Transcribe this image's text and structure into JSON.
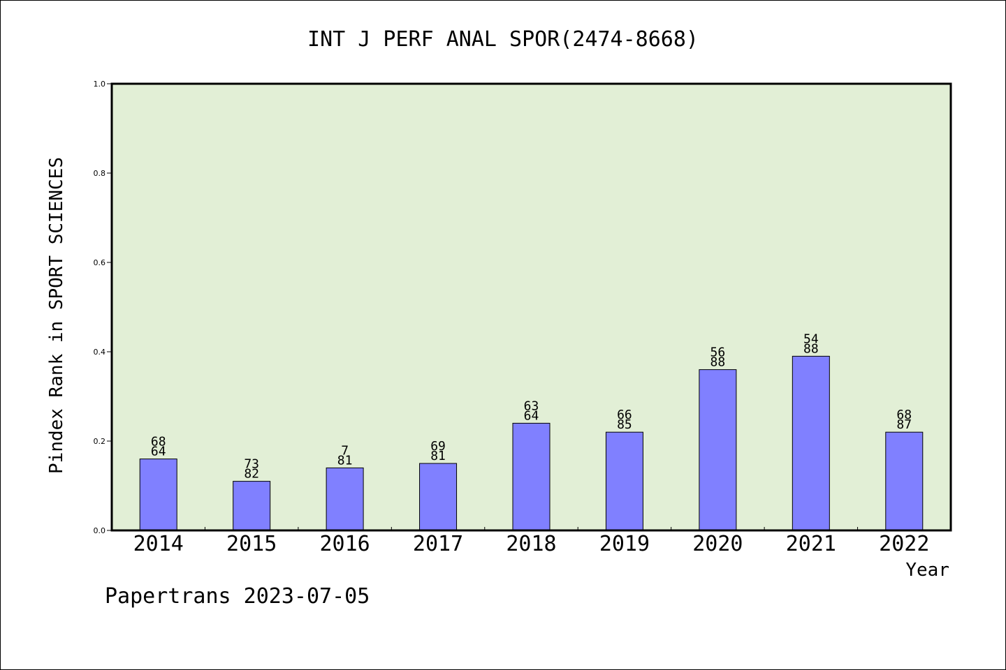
{
  "chart_data": {
    "type": "bar",
    "title": "INT J PERF ANAL SPOR(2474-8668)",
    "ylabel": "Pindex Rank in SPORT SCIENCES",
    "xlabel": "Year",
    "categories": [
      "2014",
      "2015",
      "2016",
      "2017",
      "2018",
      "2019",
      "2020",
      "2021",
      "2022"
    ],
    "values": [
      0.16,
      0.11,
      0.14,
      0.15,
      0.24,
      0.22,
      0.36,
      0.39,
      0.22
    ],
    "bar_labels": [
      [
        "68",
        "64"
      ],
      [
        "73",
        "82"
      ],
      [
        "7",
        "81"
      ],
      [
        "69",
        "81"
      ],
      [
        "63",
        "64"
      ],
      [
        "66",
        "85"
      ],
      [
        "56",
        "88"
      ],
      [
        "54",
        "88"
      ],
      [
        "68",
        "87"
      ]
    ],
    "ylim": [
      0,
      1.0
    ],
    "yticks": [
      "0.0",
      "0.2",
      "0.4",
      "0.6",
      "0.8",
      "1.0"
    ],
    "grid": false,
    "colors": {
      "bar": "#8080ff",
      "plot_bg": "#e2efd6",
      "axis": "#000000"
    }
  },
  "footer": {
    "credit": "Papertrans 2023-07-05"
  }
}
